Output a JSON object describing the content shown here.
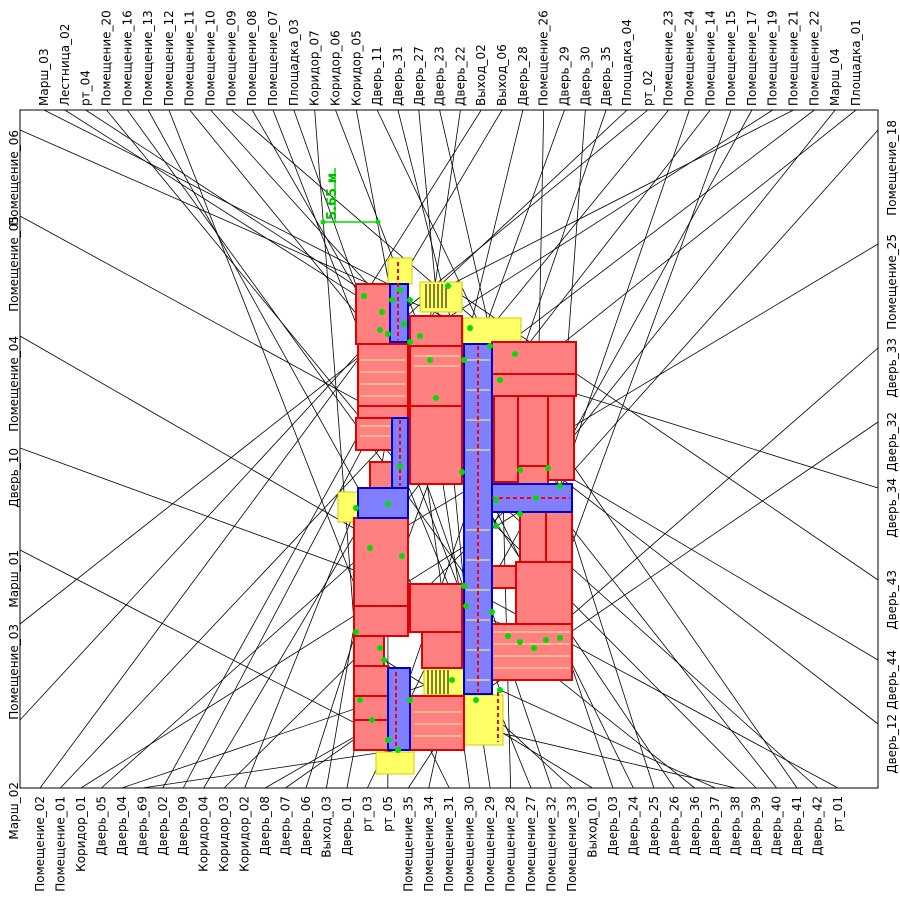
{
  "scale_label": "5.65 м",
  "colors": {
    "room": "#ff8080",
    "room_border": "#e00000",
    "corridor": "#8080ff",
    "corridor_border": "#0000cc",
    "landing": "#ffff66",
    "node": "#00dd00",
    "leader": "#000000"
  },
  "labels": {
    "top": [
      "Марш_03",
      "Лестница_02",
      "рт_04",
      "Помещение_20",
      "Помещение_16",
      "Помещение_13",
      "Помещение_12",
      "Помещение_11",
      "Помещение_10",
      "Помещение_09",
      "Помещение_08",
      "Помещение_07",
      "Площадка_03",
      "Коридор_07",
      "Коридор_06",
      "Коридор_05",
      "Дверь_11",
      "Дверь_31",
      "Дверь_27",
      "Дверь_23",
      "Дверь_22",
      "Выход_02",
      "Выход_06",
      "Дверь_28",
      "Помещение_26",
      "Дверь_29",
      "Дверь_30",
      "Дверь_35",
      "Площадка_04",
      "рт_02",
      "Помещение_23",
      "Помещение_24",
      "Помещение_14",
      "Помещение_15",
      "Помещение_17",
      "Помещение_19",
      "Помещение_21",
      "Помещение_22",
      "Марш_04",
      "Площадка_01"
    ],
    "bottom": [
      "Помещение_02",
      "Помещение_01",
      "Коридор_01",
      "Дверь_05",
      "Дверь_04",
      "Дверь_69",
      "Дверь_02",
      "Дверь_09",
      "Коридор_04",
      "Коридор_03",
      "Коридор_02",
      "Дверь_08",
      "Дверь_07",
      "Дверь_06",
      "Выход_03",
      "Дверь_01",
      "рт_03",
      "рт_05",
      "Помещение_35",
      "Помещение_34",
      "Помещение_31",
      "Помещение_30",
      "Помещение_29",
      "Помещение_28",
      "Помещение_27",
      "Помещение_32",
      "Помещение_33",
      "Выход_01",
      "Дверь_03",
      "Дверь_24",
      "Дверь_25",
      "Дверь_26",
      "Дверь_36",
      "Дверь_37",
      "Дверь_38",
      "Дверь_39",
      "Дверь_40",
      "Дверь_41",
      "Дверь_42",
      "рт_01"
    ],
    "left": [
      "Помещение_06",
      "Помещение_05",
      "Помещение_04",
      "Дверь_10",
      "Марш_01",
      "Помещение_03",
      "Марш_02"
    ],
    "right": [
      "Помещение_18",
      "Помещение_25",
      "Дверь_33",
      "Дверь_32",
      "Дверь_34",
      "Дверь_43",
      "Дверь_44",
      "Дверь_12"
    ]
  }
}
